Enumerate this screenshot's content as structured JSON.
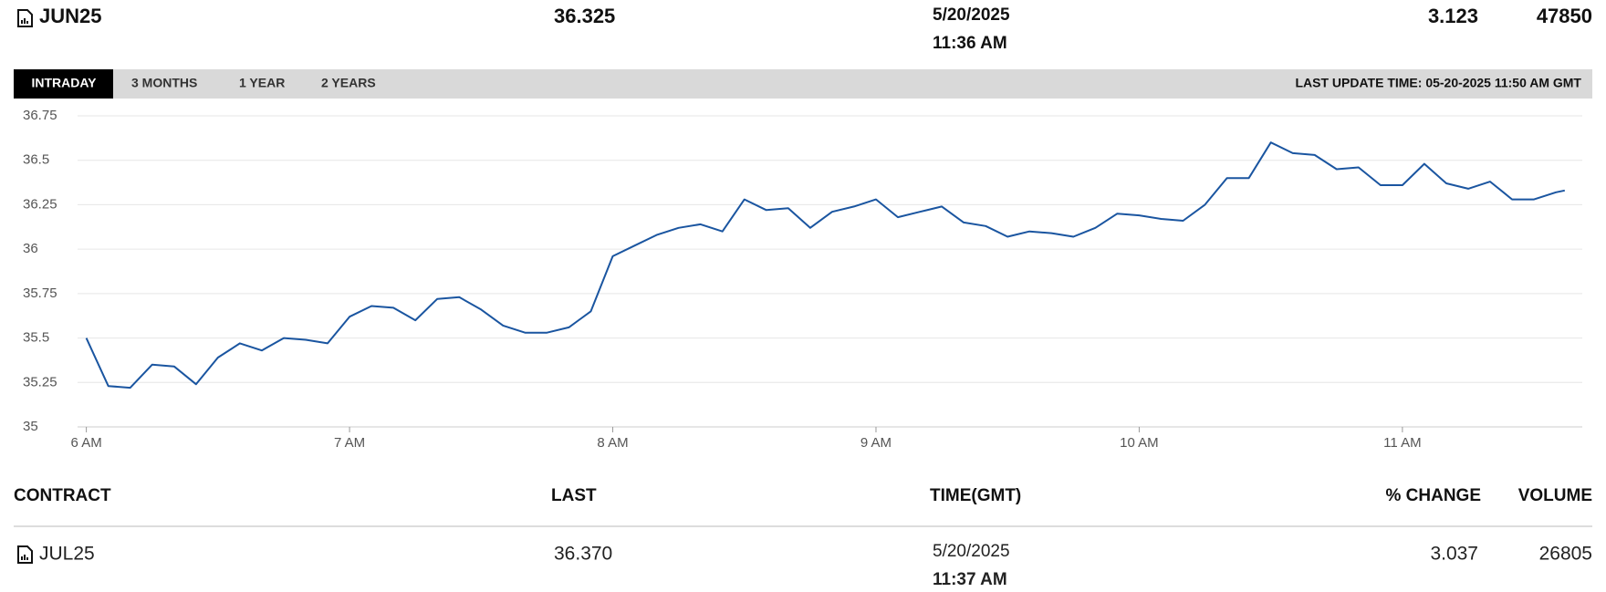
{
  "header": {
    "contract": "JUN25",
    "last": "36.325",
    "date": "5/20/2025",
    "time": "11:36 AM",
    "change": "3.123",
    "volume": "47850"
  },
  "tabs": [
    "INTRADAY",
    "3 MONTHS",
    "1 YEAR",
    "2 YEARS"
  ],
  "last_update": "LAST UPDATE TIME: 05-20-2025 11:50 AM GMT",
  "chart_data": {
    "type": "line",
    "color": "#1a55a0",
    "grid": true,
    "x": [
      360,
      365,
      370,
      375,
      380,
      385,
      390,
      395,
      400,
      405,
      410,
      415,
      420,
      425,
      430,
      435,
      440,
      445,
      450,
      455,
      460,
      465,
      470,
      475,
      480,
      485,
      490,
      495,
      500,
      505,
      510,
      515,
      520,
      525,
      530,
      535,
      540,
      545,
      550,
      555,
      560,
      565,
      570,
      575,
      580,
      585,
      590,
      595,
      600,
      605,
      610,
      615,
      620,
      625,
      630,
      635,
      640,
      645,
      650,
      655,
      660,
      665,
      670,
      675,
      680,
      685,
      690,
      695,
      697
    ],
    "values": [
      35.5,
      35.23,
      35.22,
      35.35,
      35.34,
      35.24,
      35.39,
      35.47,
      35.43,
      35.5,
      35.49,
      35.47,
      35.62,
      35.68,
      35.67,
      35.6,
      35.72,
      35.73,
      35.66,
      35.57,
      35.53,
      35.53,
      35.56,
      35.65,
      35.96,
      36.02,
      36.08,
      36.12,
      36.14,
      36.1,
      36.28,
      36.22,
      36.23,
      36.12,
      36.21,
      36.24,
      36.28,
      36.18,
      36.21,
      36.24,
      36.15,
      36.13,
      36.07,
      36.1,
      36.09,
      36.07,
      36.12,
      36.2,
      36.19,
      36.17,
      36.16,
      36.25,
      36.4,
      36.4,
      36.6,
      36.54,
      36.53,
      36.45,
      36.46,
      36.36,
      36.36,
      36.48,
      36.37,
      36.34,
      36.38,
      36.28,
      36.28,
      36.32,
      36.33
    ],
    "xlim": [
      358,
      701
    ],
    "xticks": [
      {
        "value": 360,
        "label": "6 AM"
      },
      {
        "value": 420,
        "label": "7 AM"
      },
      {
        "value": 480,
        "label": "8 AM"
      },
      {
        "value": 540,
        "label": "9 AM"
      },
      {
        "value": 600,
        "label": "10 AM"
      },
      {
        "value": 660,
        "label": "11 AM"
      }
    ],
    "ylim": [
      35,
      36.75
    ],
    "yticks": [
      35,
      35.25,
      35.5,
      35.75,
      36,
      36.25,
      36.5,
      36.75
    ]
  },
  "table": {
    "columns": [
      "CONTRACT",
      "LAST",
      "TIME(GMT)",
      "% CHANGE",
      "VOLUME"
    ],
    "rows": [
      {
        "contract": "JUL25",
        "last": "36.370",
        "date": "5/20/2025",
        "time": "11:37 AM",
        "change": "3.037",
        "volume": "26805"
      }
    ]
  }
}
